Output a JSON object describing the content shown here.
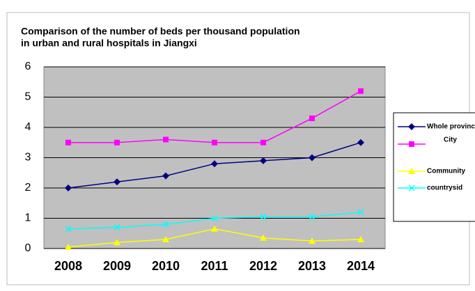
{
  "chart_data": {
    "type": "line",
    "title": [
      "Comparison of the number of beds per thousand population",
      "in urban and rural hospitals in Jiangxi"
    ],
    "categories": [
      "2008",
      "2009",
      "2010",
      "2011",
      "2012",
      "2013",
      "2014"
    ],
    "series": [
      {
        "name": "Whole provinc",
        "color": "#000080",
        "marker": "diamond",
        "values": [
          2.0,
          2.2,
          2.4,
          2.8,
          2.9,
          3.0,
          3.5
        ]
      },
      {
        "name": "City",
        "color": "#ff00ff",
        "marker": "square",
        "values": [
          3.5,
          3.5,
          3.6,
          3.5,
          3.5,
          4.3,
          5.2
        ]
      },
      {
        "name": "Community",
        "color": "#ffff00",
        "marker": "triangle",
        "values": [
          0.05,
          0.2,
          0.3,
          0.65,
          0.35,
          0.25,
          0.3
        ]
      },
      {
        "name": "countrysid",
        "color": "#00ffff",
        "marker": "x",
        "values": [
          0.65,
          0.7,
          0.8,
          1.0,
          1.05,
          1.05,
          1.2
        ]
      }
    ],
    "ylim": [
      0,
      6
    ],
    "yticks": [
      0,
      1,
      2,
      3,
      4,
      5,
      6
    ],
    "grid": true,
    "plot_background": "#c0c0c0",
    "legend": "right"
  }
}
